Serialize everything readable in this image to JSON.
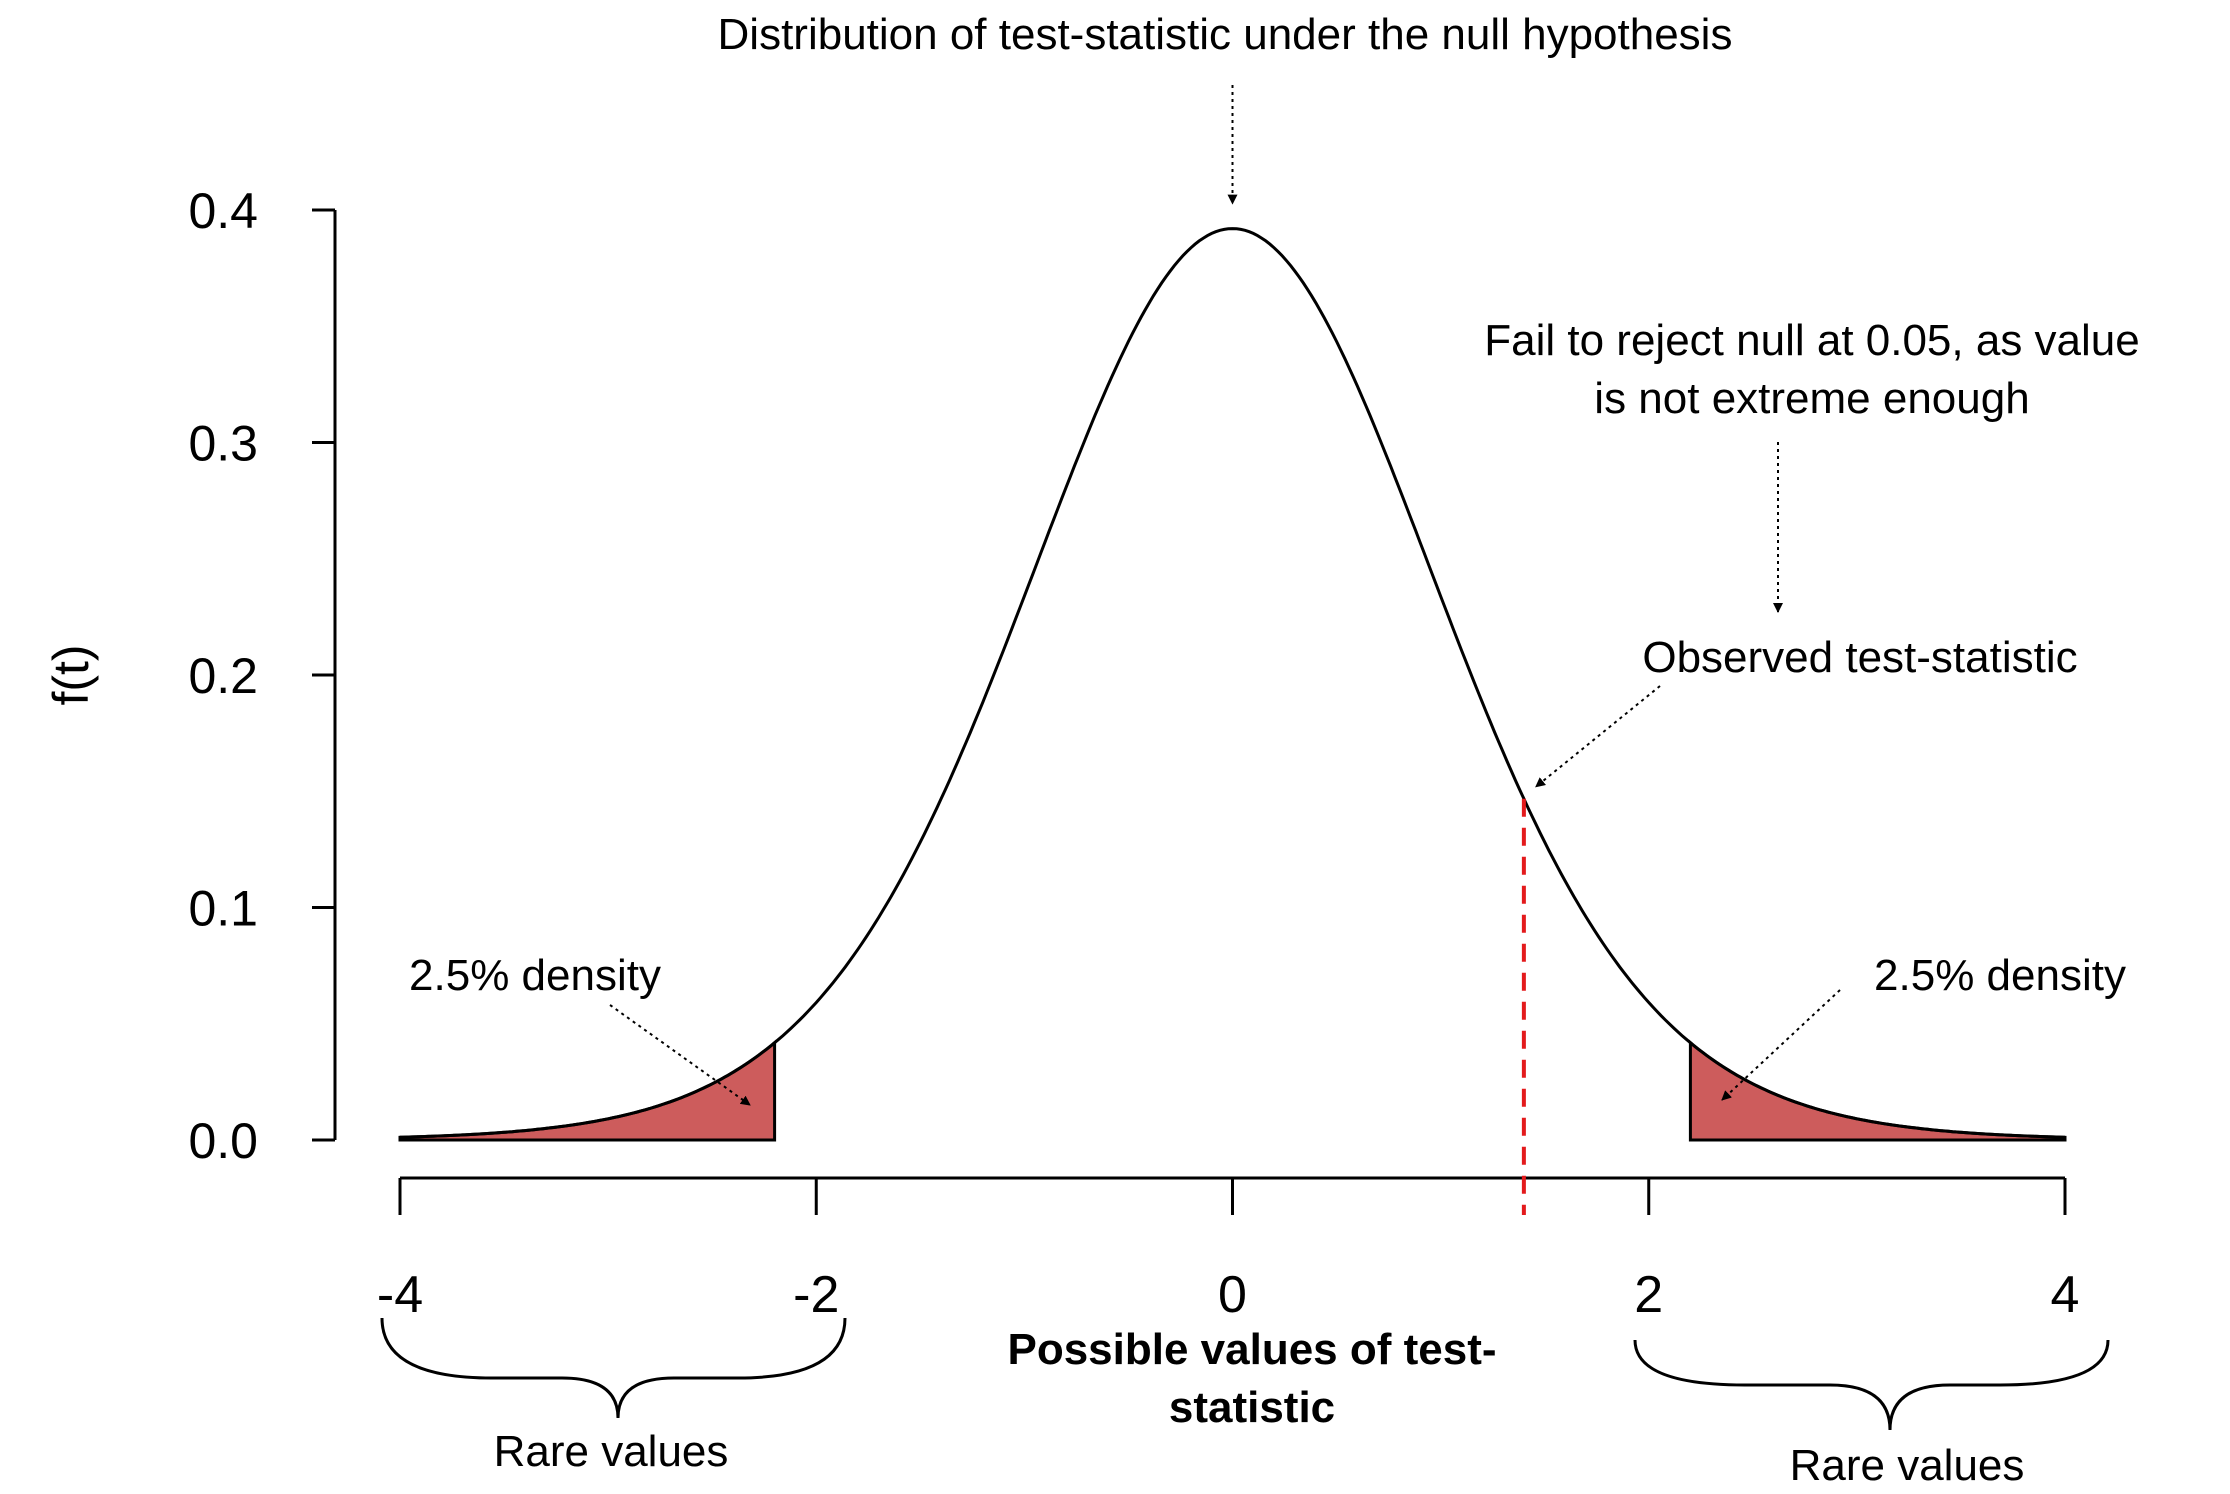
{
  "chart_data": {
    "type": "area",
    "title": "Distribution of test-statistic under the null hypothesis",
    "xlabel": "Possible values of test-statistic",
    "xlabel_lines": [
      "Possible values of test-",
      "statistic"
    ],
    "ylabel": "f(t)",
    "xlim": [
      -4,
      4
    ],
    "ylim": [
      0,
      0.4
    ],
    "x_ticks": [
      -4,
      -2,
      0,
      2,
      4
    ],
    "x_tick_labels": [
      "-4",
      "-2",
      "0",
      "2",
      "4"
    ],
    "y_ticks": [
      0,
      0.1,
      0.2,
      0.3,
      0.4
    ],
    "y_tick_labels": [
      "0.0",
      "0.1",
      "0.2",
      "0.3",
      "0.4"
    ],
    "grid": false,
    "curve": {
      "distribution": "t",
      "df": 15,
      "peak_density": 0.392
    },
    "critical_values": [
      -2.2,
      2.2
    ],
    "tail_fill_color": "#cd5c5c",
    "observed_statistic": 1.4,
    "observed_line_color": "#e31a1c",
    "annotations": {
      "top_arrow_label": "Distribution of test-statistic under the null hypothesis",
      "decision_lines": [
        "Fail to reject null at 0.05, as value",
        "is not extreme enough"
      ],
      "decision_color": "#c00000",
      "observed_label": "Observed test-statistic",
      "left_tail_label": "2.5% density",
      "right_tail_label": "2.5% density",
      "left_brace_label": "Rare values",
      "right_brace_label": "Rare values"
    }
  }
}
